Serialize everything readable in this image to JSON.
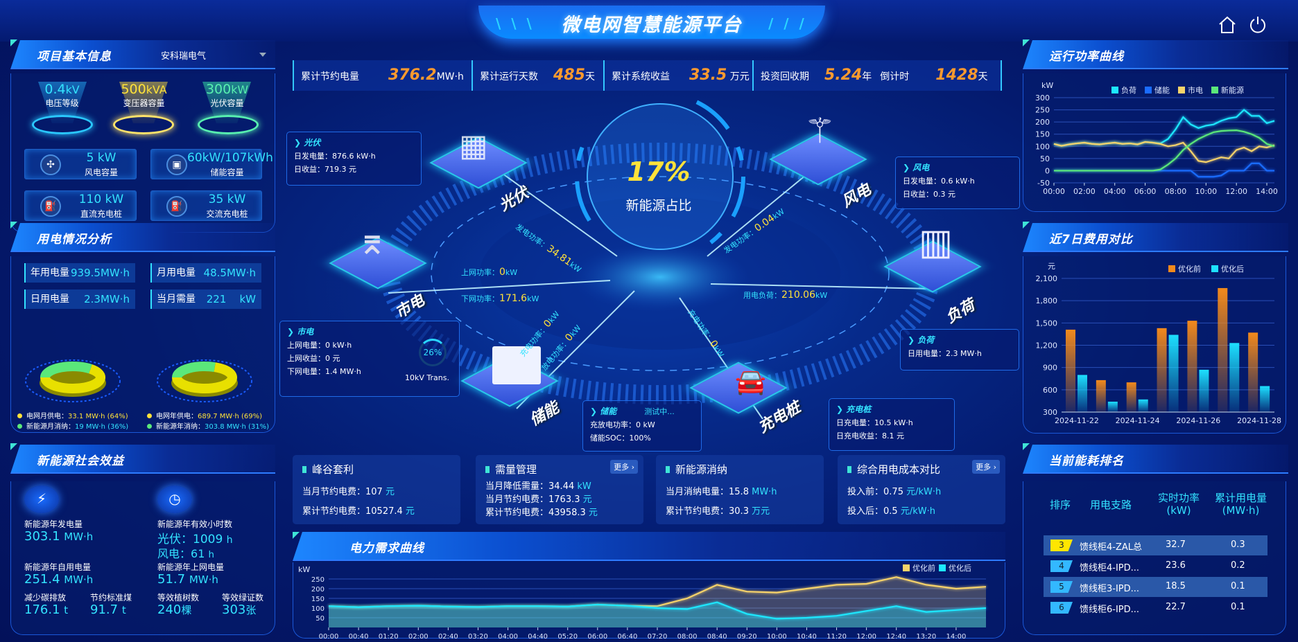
{
  "header": {
    "title": "微电网智慧能源平台",
    "slash_left": "\\ \\ \\",
    "slash_right": "/ / /",
    "icons": [
      "home-icon",
      "power-icon"
    ]
  },
  "colors": {
    "cyan": "#33e3ff",
    "yellow": "#ffe23a",
    "orange": "#ff9a2e",
    "load": "#1de8ff",
    "storage": "#1a6cff",
    "grid": "#f7d36a",
    "renewable": "#5be87a",
    "before": "#f28a1c",
    "after": "#1de0ff"
  },
  "stats": [
    {
      "label": "累计节约电量",
      "value": "376.2",
      "unit": "MW·h"
    },
    {
      "label": "累计运行天数",
      "value": "485",
      "unit": "天"
    },
    {
      "label": "累计系统收益",
      "value": "33.5",
      "unit": "万元"
    },
    {
      "label": "投资回收期",
      "value": "5.24",
      "unit": "年"
    },
    {
      "label": "倒计时",
      "value": "1428",
      "unit": "天"
    }
  ],
  "project": {
    "title": "项目基本信息",
    "company": "安科瑞电气",
    "caps": [
      {
        "value": "0.4",
        "unit": "kV",
        "label": "电压等级"
      },
      {
        "value": "500",
        "unit": "kVA",
        "label": "变压器容量"
      },
      {
        "value": "300",
        "unit": "kW",
        "label": "光伏容量"
      }
    ],
    "items": [
      {
        "value": "5 kW",
        "label": "风电容量",
        "icon": "wind-turbine-icon"
      },
      {
        "value": "60kW/107kWh",
        "label": "储能容量",
        "icon": "battery-icon"
      },
      {
        "value": "110 kW",
        "label": "直流充电桩",
        "icon": "charger-icon"
      },
      {
        "value": "35 kW",
        "label": "交流充电桩",
        "icon": "charger-icon"
      }
    ]
  },
  "usage": {
    "title": "用电情况分析",
    "boxes": [
      {
        "label": "年用电量",
        "value": "939.5MW·h"
      },
      {
        "label": "月用电量",
        "value": "48.5MW·h"
      },
      {
        "label": "日用电量",
        "value": "2.3MW·h"
      },
      {
        "label": "当月需量",
        "value": "221    kW"
      }
    ],
    "donuts": [
      {
        "grid_pct": 64,
        "renew_pct": 36
      },
      {
        "grid_pct": 69,
        "renew_pct": 31
      }
    ],
    "legend": [
      {
        "label": "电网月供电：",
        "value": "33.1 MW·h (64%)"
      },
      {
        "label": "电网年供电：",
        "value": "689.7 MW·h (69%)"
      },
      {
        "label": "新能源月消纳：",
        "value": "19 MW·h (36%)"
      },
      {
        "label": "新能源年消纳：",
        "value": "303.8 MW·h (31%)"
      }
    ]
  },
  "social": {
    "title": "新能源社会效益",
    "gen_label": "新能源年发电量",
    "gen_value": "303.1",
    "gen_unit": "MW·h",
    "hours_label": "新能源年有效小时数",
    "pv_label": "光伏：",
    "pv_value": "1009",
    "wind_label": "风电：",
    "wind_value": "61",
    "h": "h",
    "self_label": "新能源年自用电量",
    "self_value": "251.4",
    "grid_label": "新能源年上网电量",
    "grid_value": "51.7",
    "mwh": "MW·h",
    "carbon_label": "减少碳排放",
    "carbon_value": "176.1",
    "coal_label": "节约标准煤",
    "coal_value": "91.7",
    "t": "t",
    "tree_label": "等效植树数",
    "tree_value": "240",
    "tree_unit": "棵",
    "cert_label": "等效绿证数",
    "cert_value": "303",
    "cert_unit": "张"
  },
  "center": {
    "ratio": "17%",
    "ratio_label": "新能源占比",
    "nodes": {
      "pv": "光伏",
      "wind": "风电",
      "grid": "市电",
      "load": "负荷",
      "storage": "储能",
      "charger": "充电桩"
    },
    "flows": {
      "pv": {
        "label": "发电功率：",
        "value": "34.81",
        "unit": "kW"
      },
      "wind": {
        "label": "发电功率：",
        "value": "0.04",
        "unit": "kW"
      },
      "grid_up": {
        "label": "上网功率：",
        "value": "0",
        "unit": "kW"
      },
      "grid_down": {
        "label": "下网功率：",
        "value": "171.6",
        "unit": "kW"
      },
      "load": {
        "label": "用电负荷：",
        "value": "210.06",
        "unit": "kW"
      },
      "charge": {
        "label": "充电功率：",
        "value": "0",
        "unit": "kW"
      },
      "discharge": {
        "label": "放电功率：",
        "value": "0",
        "unit": "kW"
      },
      "ev": {
        "label": "充电功率：",
        "value": "0",
        "unit": "kW"
      }
    },
    "boxes": {
      "pv": {
        "title": "光伏",
        "lines": [
          "日发电量：876.6 kW·h",
          "日收益：719.3 元"
        ]
      },
      "wind": {
        "title": "风电",
        "lines": [
          "日发电量：0.6 kW·h",
          "日收益：0.3 元"
        ]
      },
      "grid": {
        "title": "市电",
        "lines": [
          "上网电量：0 kW·h",
          "上网收益：0 元",
          "下网电量：1.4 MW·h"
        ],
        "gauge": "26%",
        "gauge_pct": 26,
        "trans": "10kV Trans."
      },
      "load": {
        "title": "负荷",
        "lines": [
          "日用电量：2.3 MW·h"
        ]
      },
      "storage": {
        "title": "储能",
        "status": "测试中...",
        "lines": [
          "充放电功率：0 kW",
          "储能SOC：100%"
        ]
      },
      "charger": {
        "title": "充电桩",
        "lines": [
          "日充电量：10.5 kW·h",
          "日充电收益：8.1 元"
        ]
      }
    }
  },
  "cards": [
    {
      "title": "峰谷套利",
      "rows": [
        {
          "label": "当月节约电费：",
          "value": "107",
          "unit": "元"
        },
        {
          "label": "累计节约电费：",
          "value": "10527.4",
          "unit": "元"
        }
      ]
    },
    {
      "title": "需量管理",
      "more": "更多 ›",
      "rows": [
        {
          "label": "当月降低需量：",
          "value": "34.44",
          "unit": "kW"
        },
        {
          "label": "当月节约电费：",
          "value": "1763.3",
          "unit": "元"
        },
        {
          "label": "累计节约电费：",
          "value": "43958.3",
          "unit": "元"
        }
      ]
    },
    {
      "title": "新能源消纳",
      "rows": [
        {
          "label": "当月消纳电量：",
          "value": "15.8",
          "unit": "MW·h"
        },
        {
          "label": "累计节约电费：",
          "value": "30.3",
          "unit": "万元"
        }
      ]
    },
    {
      "title": "综合用电成本对比",
      "more": "更多 ›",
      "rows": [
        {
          "label": "投入前：",
          "value": "0.75",
          "unit": "元/kW·h"
        },
        {
          "label": "投入后：",
          "value": "0.5",
          "unit": "元/kW·h"
        }
      ]
    }
  ],
  "demand": {
    "title": "电力需求曲线"
  },
  "power": {
    "title": "运行功率曲线"
  },
  "cost": {
    "title": "近7日费用对比"
  },
  "ranking": {
    "title": "当前能耗排名",
    "headers": [
      "排序",
      "用电支路",
      "实时功率\n(kW)",
      "累计用电量\n(MW·h)"
    ],
    "rows": [
      {
        "rank": "3",
        "name": "馈线柜4-ZAL总",
        "power": "32.7",
        "energy": "0.3"
      },
      {
        "rank": "4",
        "name": "馈线柜4-IPD...",
        "power": "23.6",
        "energy": "0.2"
      },
      {
        "rank": "5",
        "name": "馈线柜3-IPD...",
        "power": "18.5",
        "energy": "0.1"
      },
      {
        "rank": "6",
        "name": "馈线柜6-IPD...",
        "power": "22.7",
        "energy": "0.1"
      }
    ]
  },
  "chart_data": [
    {
      "type": "line",
      "ylabel": "kW",
      "ylim": [
        -50,
        300
      ],
      "yticks": [
        -50,
        0,
        50,
        100,
        150,
        200,
        250,
        300
      ],
      "grid": true,
      "legend": "top",
      "x": [
        "00:00",
        "00:30",
        "01:00",
        "01:30",
        "02:00",
        "02:30",
        "03:00",
        "03:30",
        "04:00",
        "04:30",
        "05:00",
        "05:30",
        "06:00",
        "06:30",
        "07:00",
        "07:30",
        "08:00",
        "08:30",
        "09:00",
        "09:30",
        "10:00",
        "10:30",
        "11:00",
        "11:30",
        "12:00",
        "12:30",
        "13:00",
        "13:30",
        "14:00",
        "14:30"
      ],
      "xticks": [
        "00:00",
        "02:00",
        "04:00",
        "06:00",
        "08:00",
        "10:00",
        "12:00",
        "14:00"
      ],
      "series": [
        {
          "name": "负荷",
          "values": [
            110,
            102,
            108,
            112,
            115,
            110,
            108,
            112,
            115,
            110,
            112,
            108,
            118,
            115,
            112,
            130,
            170,
            220,
            190,
            175,
            185,
            190,
            205,
            215,
            220,
            250,
            225,
            225,
            195,
            205
          ]
        },
        {
          "name": "储能",
          "values": [
            0,
            0,
            0,
            0,
            0,
            0,
            0,
            0,
            0,
            0,
            0,
            0,
            0,
            0,
            0,
            0,
            0,
            0,
            0,
            -25,
            -25,
            -25,
            -20,
            0,
            0,
            0,
            30,
            30,
            0,
            0
          ]
        },
        {
          "name": "市电",
          "values": [
            110,
            102,
            108,
            112,
            115,
            110,
            108,
            112,
            115,
            110,
            112,
            108,
            118,
            115,
            110,
            100,
            105,
            115,
            80,
            40,
            35,
            45,
            55,
            50,
            85,
            95,
            80,
            100,
            95,
            105
          ]
        },
        {
          "name": "新能源",
          "values": [
            0,
            0,
            0,
            0,
            0,
            0,
            0,
            0,
            0,
            0,
            0,
            0,
            0,
            0,
            5,
            25,
            50,
            85,
            110,
            130,
            145,
            158,
            163,
            165,
            166,
            160,
            150,
            135,
            110,
            100
          ]
        }
      ]
    },
    {
      "type": "bar",
      "ylabel": "元",
      "ylim": [
        300,
        2100
      ],
      "yticks": [
        "300",
        "600",
        "900",
        "1,200",
        "1,500",
        "1,800",
        "2,100"
      ],
      "grid": true,
      "legend": "top",
      "categories": [
        "2024-11-22",
        "2024-11-23",
        "2024-11-24",
        "2024-11-25",
        "2024-11-26",
        "2024-11-27",
        "2024-11-28"
      ],
      "xticks": [
        "2024-11-22",
        "2024-11-24",
        "2024-11-26",
        "2024-11-28"
      ],
      "series": [
        {
          "name": "优化前",
          "values": [
            1410,
            730,
            700,
            1430,
            1530,
            1970,
            1370
          ]
        },
        {
          "name": "优化后",
          "values": [
            800,
            440,
            470,
            1340,
            870,
            1230,
            650
          ]
        }
      ]
    },
    {
      "type": "area",
      "ylabel": "kW",
      "ylim": [
        0,
        300
      ],
      "yticks": [
        50,
        100,
        150,
        200,
        250
      ],
      "grid": true,
      "legend": "top-right",
      "x": [
        "00:00",
        "00:40",
        "01:20",
        "02:00",
        "02:40",
        "03:20",
        "04:00",
        "04:40",
        "05:20",
        "06:00",
        "06:40",
        "07:20",
        "08:00",
        "08:40",
        "09:20",
        "10:00",
        "10:40",
        "11:20",
        "12:00",
        "12:40",
        "13:20",
        "14:00",
        "14:40"
      ],
      "xticks": [
        "00:00",
        "00:40",
        "01:20",
        "02:00",
        "02:40",
        "03:20",
        "04:00",
        "04:40",
        "05:20",
        "06:00",
        "06:40",
        "07:20",
        "08:00",
        "08:40",
        "09:20",
        "10:00",
        "10:40",
        "11:20",
        "12:00",
        "12:40",
        "13:20",
        "14:00"
      ],
      "series": [
        {
          "name": "优化前",
          "values": [
            110,
            105,
            110,
            112,
            108,
            106,
            110,
            110,
            108,
            118,
            112,
            110,
            150,
            220,
            185,
            180,
            200,
            220,
            225,
            260,
            220,
            200,
            210
          ]
        },
        {
          "name": "优化后",
          "values": [
            110,
            105,
            110,
            112,
            108,
            106,
            110,
            110,
            108,
            118,
            112,
            100,
            95,
            130,
            70,
            45,
            50,
            60,
            85,
            110,
            80,
            90,
            100
          ]
        }
      ]
    }
  ]
}
